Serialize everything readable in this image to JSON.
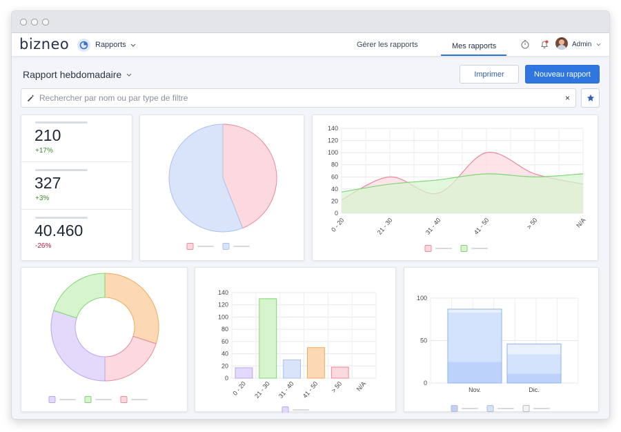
{
  "app": {
    "brand": "bizneo",
    "module": "Rapports"
  },
  "nav": {
    "links": [
      {
        "label": "Gérer les rapports",
        "active": false
      },
      {
        "label": "Mes rapports",
        "active": true
      }
    ],
    "user": "Admin"
  },
  "header": {
    "title": "Rapport hebdomadaire",
    "print_label": "Imprimer",
    "new_label": "Nouveau rapport"
  },
  "search": {
    "placeholder": "Rechercher par nom ou par type de filtre",
    "clear": "×"
  },
  "kpis": [
    {
      "value": "210",
      "change": "+17%",
      "color": "#3e8a2a"
    },
    {
      "value": "327",
      "change": "+3%",
      "color": "#3e8a2a"
    },
    {
      "value": "40.460",
      "change": "-26%",
      "color": "#b0203a"
    }
  ],
  "colors": {
    "accent": "#2f76e0",
    "pink": "#f6c5cf",
    "pink_stroke": "#e88a9c",
    "blue": "#d9e4fb",
    "blue_stroke": "#aac1ef",
    "green": "#d6f5cf",
    "green_stroke": "#7fd473",
    "orange": "#fcd9b4",
    "orange_stroke": "#f0a95c",
    "purple": "#e3d9fb",
    "purple_stroke": "#b9a3ef"
  },
  "chart_data": [
    {
      "type": "pie",
      "values": [
        44,
        56
      ],
      "colors": [
        "#fcd9df",
        "#d9e4fb"
      ]
    },
    {
      "type": "area",
      "categories": [
        "0 - 20",
        "21 - 30",
        "31 - 40",
        "41 - 50",
        "> 50",
        "N/A"
      ],
      "ylim": [
        0,
        140
      ],
      "yticks": [
        0,
        20,
        40,
        60,
        80,
        100,
        120,
        140
      ],
      "series": [
        {
          "values": [
            22,
            60,
            33,
            100,
            65,
            48
          ],
          "color": "#fcd9df"
        },
        {
          "values": [
            35,
            48,
            55,
            65,
            60,
            65
          ],
          "color": "#d6f5cf"
        }
      ]
    },
    {
      "type": "pie",
      "donut": true,
      "values": [
        30,
        20,
        30,
        20
      ],
      "colors": [
        "#fcd9b4",
        "#fcd9df",
        "#e3d9fb",
        "#d6f5cf"
      ]
    },
    {
      "type": "bar",
      "categories": [
        "0 - 20",
        "21 - 30",
        "31 - 40",
        "41 - 50",
        "> 50",
        "N/A"
      ],
      "values": [
        17,
        130,
        30,
        50,
        18,
        0
      ],
      "ylim": [
        0,
        140
      ],
      "yticks": [
        0,
        20,
        40,
        60,
        80,
        100,
        120,
        140
      ]
    },
    {
      "type": "bar",
      "stacked": true,
      "categories": [
        "Nov.",
        "Dic."
      ],
      "ylim": [
        0,
        100
      ],
      "yticks": [
        0,
        50,
        100
      ],
      "series": [
        {
          "values": [
            25,
            11
          ]
        },
        {
          "values": [
            58,
            23
          ]
        },
        {
          "values": [
            4,
            12
          ]
        }
      ]
    }
  ]
}
